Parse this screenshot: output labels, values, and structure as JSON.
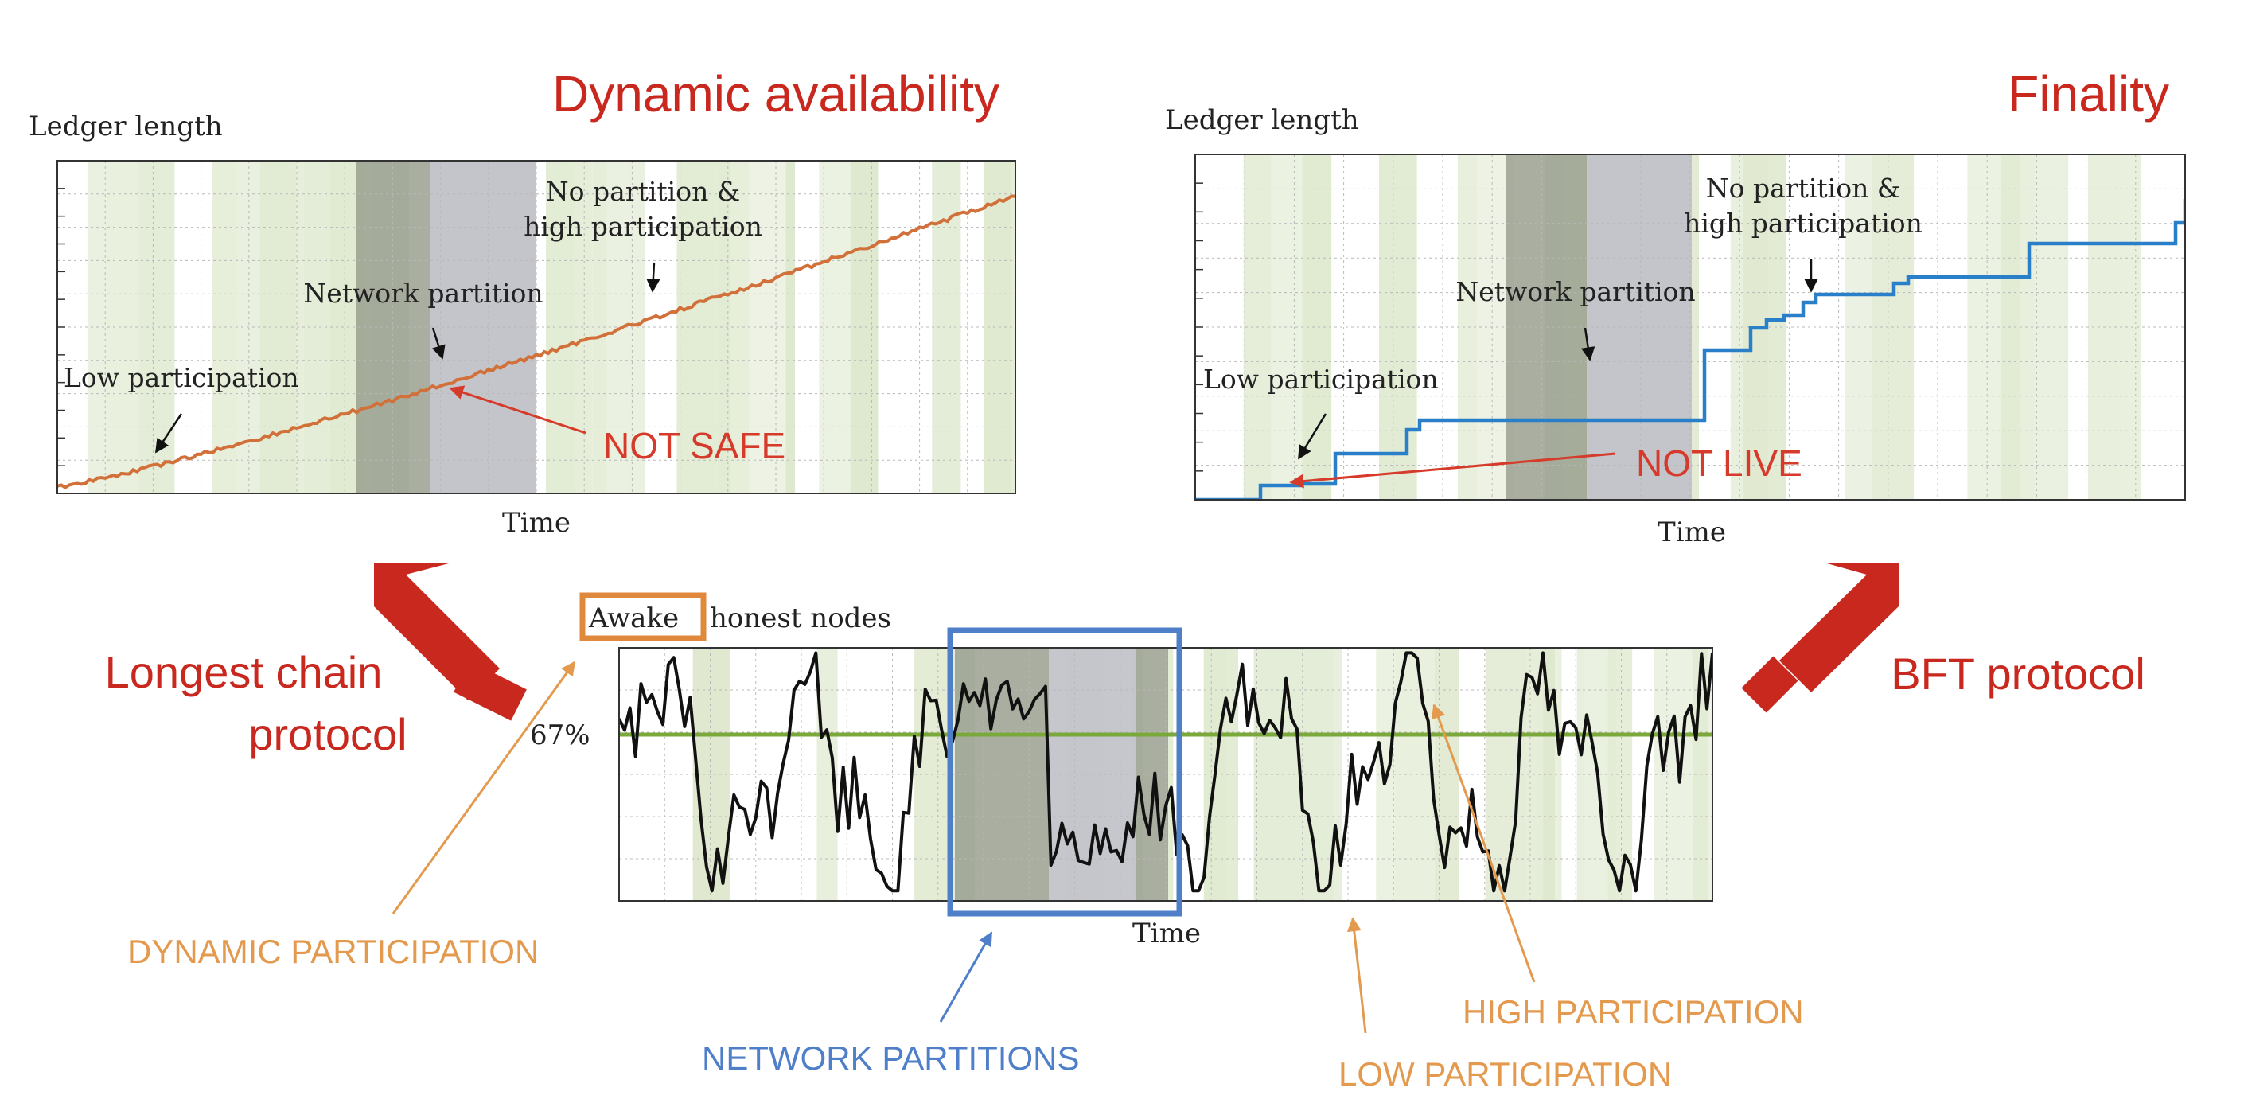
{
  "colors": {
    "red": "#c8281e",
    "orange_line": "#d2703a",
    "blue_line": "#2a7fc9",
    "orange_label": "#e39a4e",
    "blue_label": "#4f7fc9",
    "green_threshold": "#7aa83a",
    "participation_band": "#dfe9cf",
    "partition_dark": "#9aa08f",
    "partition_light": "#c9c9d2"
  },
  "titles": {
    "left": "Dynamic availability",
    "right": "Finality"
  },
  "left_chart": {
    "ylabel": "Ledger length",
    "xlabel": "Time",
    "annotations": {
      "no_partition_1": "No partition &",
      "no_partition_2": "high participation",
      "network_partition": "Network partition",
      "low_participation": "Low participation"
    },
    "callout": "NOT SAFE"
  },
  "right_chart": {
    "ylabel": "Ledger length",
    "xlabel": "Time",
    "annotations": {
      "no_partition_1": "No partition &",
      "no_partition_2": "high participation",
      "network_partition": "Network partition",
      "low_participation": "Low participation"
    },
    "callout": "NOT LIVE"
  },
  "bottom_chart": {
    "ylabel_boxed": "Awake",
    "ylabel_rest": "honest nodes",
    "xlabel": "Time",
    "threshold_label": "67%",
    "threshold": 0.67
  },
  "labels": {
    "longest_chain_1": "Longest chain",
    "longest_chain_2": "protocol",
    "bft": "BFT protocol",
    "dynamic_participation": "DYNAMIC PARTICIPATION",
    "network_partitions": "NETWORK PARTITIONS",
    "high_participation": "HIGH PARTICIPATION",
    "low_participation": "LOW PARTICIPATION"
  },
  "icons": [
    "arrow-up-left-icon",
    "arrow-up-right-icon"
  ]
}
